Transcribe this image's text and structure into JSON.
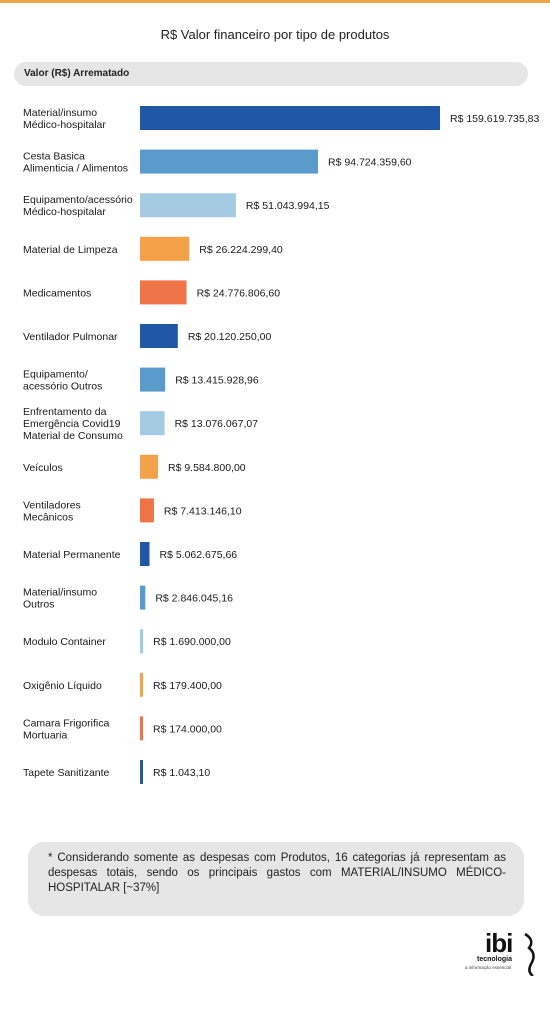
{
  "page": {
    "accent_color": "#f4a24a"
  },
  "header_label": "Valor (R$) Arrematado",
  "note": "* Considerando somente as despesas com Produtos, 16 categorias já representam as despesas totais, sendo os principais gastos com MATERIAL/INSUMO MÉDICO-HOSPITALAR [~37%]",
  "logo": {
    "mark": "ibi",
    "name": "tecnologia",
    "tagline": "a informação essencial"
  },
  "chart_data": {
    "type": "bar",
    "orientation": "horizontal",
    "title": "R$ Valor financeiro por tipo de produtos",
    "xlabel": "",
    "ylabel": "",
    "grid": false,
    "legend": "none",
    "xlim": [
      0,
      159619735.83
    ],
    "categories": [
      [
        "Material/insumo",
        "Médico-hospitalar"
      ],
      [
        "Cesta Basica",
        "Alimenticia / Alimentos"
      ],
      [
        "Equipamento/acessório",
        "Médico-hospitalar"
      ],
      [
        "Material de Limpeza"
      ],
      [
        "Medicamentos"
      ],
      [
        "Ventilador Pulmonar"
      ],
      [
        "Equipamento/",
        "acessório Outros"
      ],
      [
        "Enfrentamento da",
        "Emergência Covid19",
        "Material de Consumo"
      ],
      [
        "Veículos"
      ],
      [
        "Ventiladores",
        "Mecânicos"
      ],
      [
        "Material Permanente"
      ],
      [
        "Material/insumo",
        "Outros"
      ],
      [
        "Modulo Container"
      ],
      [
        "Oxigênio Líquido"
      ],
      [
        "Camara Frigorifica",
        "Mortuaria"
      ],
      [
        "Tapete Sanitizante"
      ]
    ],
    "values": [
      159619735.83,
      94724359.6,
      51043994.15,
      26224299.4,
      24776806.6,
      20120250.0,
      13415928.96,
      13076067.07,
      9584800.0,
      7413146.1,
      5062675.66,
      2846045.16,
      1690000.0,
      179400.0,
      174000.0,
      1043.1
    ],
    "value_labels": [
      "R$ 159.619.735,83",
      "R$ 94.724.359,60",
      "R$ 51.043.994,15",
      "R$ 26.224.299,40",
      "R$ 24.776.806,60",
      "R$ 20.120.250,00",
      "R$ 13.415.928,96",
      "R$ 13.076.067,07",
      "R$ 9.584.800,00",
      "R$ 7.413.146,10",
      "R$ 5.062.675,66",
      "R$ 2.846.045,16",
      "R$ 1.690.000,00",
      "R$ 179.400,00",
      "R$ 174.000,00",
      "R$ 1.043,10"
    ],
    "colors": [
      "#2158a6",
      "#5a9bcb",
      "#a5cbe2",
      "#f4a24a",
      "#ef7448",
      "#2158a6",
      "#5a9bcb",
      "#a5cbe2",
      "#f4a24a",
      "#ef7448",
      "#2158a6",
      "#5a9bcb",
      "#a5cbe2",
      "#f4a24a",
      "#ef7448",
      "#2158a6"
    ]
  }
}
